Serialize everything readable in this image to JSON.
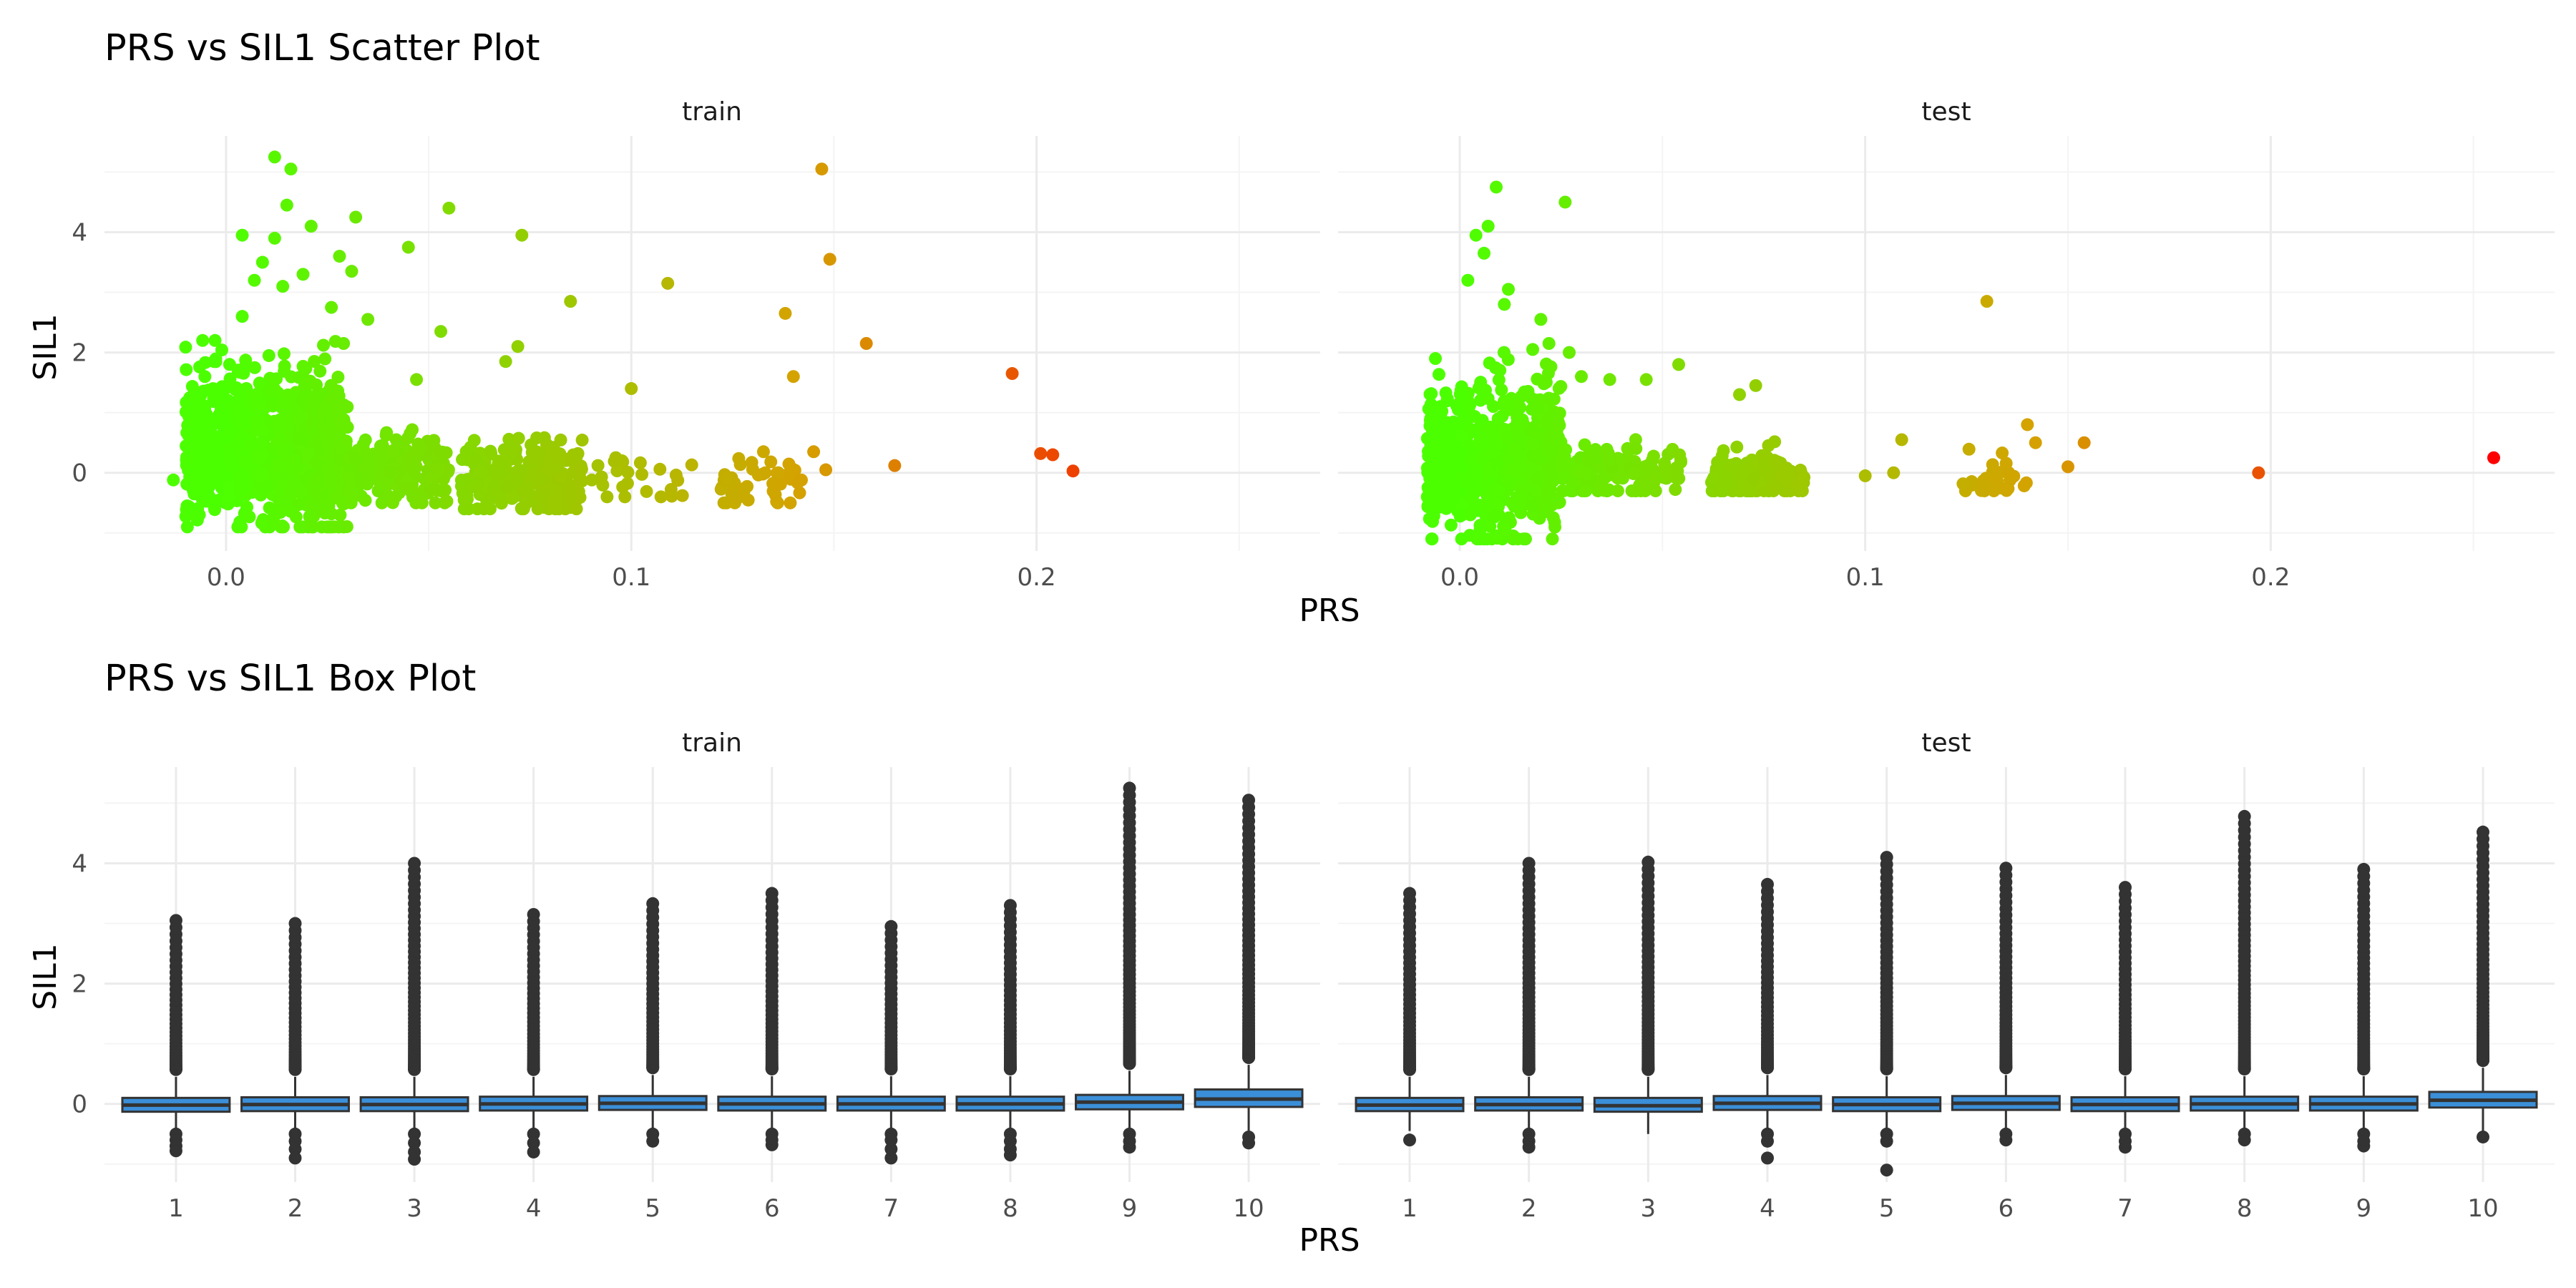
{
  "colors": {
    "background": "#ffffff",
    "grid_major": "#ebebeb",
    "grid_minor": "#f4f4f4",
    "low_prs_point": "#4cff00",
    "mid_prs_point": "#d4a300",
    "high_prs_point": "#ff0000",
    "box_fill": "#3b8fd9",
    "box_line": "#333333",
    "outlier": "#333333"
  },
  "chart_data": [
    {
      "type": "scatter",
      "title": "PRS vs SIL1 Scatter Plot",
      "xlabel": "PRS",
      "ylabel": "SIL1",
      "xlim": [
        -0.03,
        0.27
      ],
      "ylim": [
        -1.3,
        5.6
      ],
      "x_ticks": [
        0.0,
        0.1,
        0.2
      ],
      "x_tick_labels": [
        "0.0",
        "0.1",
        "0.2"
      ],
      "y_ticks": [
        0,
        2,
        4
      ],
      "y_tick_labels": [
        "0",
        "2",
        "4"
      ],
      "color_encoding": "PRS (green at 0 → orange → red at max)",
      "grid": true,
      "facets": [
        {
          "label": "train",
          "clusters": [
            {
              "x_range": [
                -0.01,
                0.03
              ],
              "y_range": [
                -0.9,
                2.2
              ],
              "n": 900
            },
            {
              "x_range": [
                0.03,
                0.055
              ],
              "y_range": [
                -0.5,
                1.0
              ],
              "n": 200
            },
            {
              "x_range": [
                0.058,
                0.088
              ],
              "y_range": [
                -0.6,
                0.9
              ],
              "n": 260
            },
            {
              "x_range": [
                0.09,
                0.115
              ],
              "y_range": [
                -0.4,
                0.6
              ],
              "n": 25
            },
            {
              "x_range": [
                0.122,
                0.142
              ],
              "y_range": [
                -0.5,
                0.7
              ],
              "n": 45
            }
          ],
          "points": [
            {
              "x": 0.012,
              "y": 5.25
            },
            {
              "x": 0.016,
              "y": 5.05
            },
            {
              "x": 0.015,
              "y": 4.45
            },
            {
              "x": 0.021,
              "y": 4.1
            },
            {
              "x": 0.032,
              "y": 4.25
            },
            {
              "x": 0.055,
              "y": 4.4
            },
            {
              "x": 0.045,
              "y": 3.75
            },
            {
              "x": 0.073,
              "y": 3.95
            },
            {
              "x": 0.004,
              "y": 3.95
            },
            {
              "x": 0.028,
              "y": 3.6
            },
            {
              "x": 0.012,
              "y": 3.9
            },
            {
              "x": 0.009,
              "y": 3.5
            },
            {
              "x": 0.019,
              "y": 3.3
            },
            {
              "x": 0.014,
              "y": 3.1
            },
            {
              "x": 0.031,
              "y": 3.35
            },
            {
              "x": 0.026,
              "y": 2.75
            },
            {
              "x": 0.035,
              "y": 2.55
            },
            {
              "x": 0.053,
              "y": 2.35
            },
            {
              "x": 0.029,
              "y": 2.15
            },
            {
              "x": 0.072,
              "y": 2.1
            },
            {
              "x": 0.069,
              "y": 1.85
            },
            {
              "x": 0.047,
              "y": 1.55
            },
            {
              "x": 0.085,
              "y": 2.85
            },
            {
              "x": 0.1,
              "y": 1.4
            },
            {
              "x": 0.109,
              "y": 3.15
            },
            {
              "x": 0.147,
              "y": 5.05
            },
            {
              "x": 0.149,
              "y": 3.55
            },
            {
              "x": 0.138,
              "y": 2.65
            },
            {
              "x": 0.158,
              "y": 2.15
            },
            {
              "x": 0.14,
              "y": 1.6
            },
            {
              "x": 0.194,
              "y": 1.65
            },
            {
              "x": 0.165,
              "y": 0.12
            },
            {
              "x": 0.201,
              "y": 0.32
            },
            {
              "x": 0.204,
              "y": 0.3
            },
            {
              "x": 0.209,
              "y": 0.03
            },
            {
              "x": -0.013,
              "y": -0.12
            },
            {
              "x": -0.007,
              "y": 0.35
            },
            {
              "x": -0.003,
              "y": 1.85
            },
            {
              "x": 0.004,
              "y": 2.6
            },
            {
              "x": 0.007,
              "y": 3.2
            },
            {
              "x": 0.148,
              "y": 0.05
            },
            {
              "x": 0.145,
              "y": 0.35
            }
          ]
        },
        {
          "label": "test",
          "clusters": [
            {
              "x_range": [
                -0.008,
                0.025
              ],
              "y_range": [
                -1.1,
                2.0
              ],
              "n": 700
            },
            {
              "x_range": [
                0.025,
                0.055
              ],
              "y_range": [
                -0.3,
                0.8
              ],
              "n": 150
            },
            {
              "x_range": [
                0.062,
                0.085
              ],
              "y_range": [
                -0.3,
                0.7
              ],
              "n": 180
            },
            {
              "x_range": [
                0.122,
                0.14
              ],
              "y_range": [
                -0.3,
                0.6
              ],
              "n": 30
            }
          ],
          "points": [
            {
              "x": 0.009,
              "y": 4.75
            },
            {
              "x": 0.026,
              "y": 4.5
            },
            {
              "x": 0.004,
              "y": 3.95
            },
            {
              "x": 0.007,
              "y": 4.1
            },
            {
              "x": 0.006,
              "y": 3.65
            },
            {
              "x": 0.002,
              "y": 3.2
            },
            {
              "x": 0.012,
              "y": 3.05
            },
            {
              "x": 0.011,
              "y": 2.8
            },
            {
              "x": 0.02,
              "y": 2.55
            },
            {
              "x": 0.022,
              "y": 2.15
            },
            {
              "x": 0.018,
              "y": 2.05
            },
            {
              "x": 0.03,
              "y": 1.6
            },
            {
              "x": 0.027,
              "y": 2.0
            },
            {
              "x": 0.037,
              "y": 1.55
            },
            {
              "x": 0.046,
              "y": 1.55
            },
            {
              "x": 0.054,
              "y": 1.8
            },
            {
              "x": 0.073,
              "y": 1.45
            },
            {
              "x": 0.069,
              "y": 1.3
            },
            {
              "x": -0.006,
              "y": 1.9
            },
            {
              "x": -0.003,
              "y": 1.2
            },
            {
              "x": 0.13,
              "y": 2.85
            },
            {
              "x": 0.154,
              "y": 0.5
            },
            {
              "x": 0.1,
              "y": -0.05
            },
            {
              "x": 0.107,
              "y": 0.0
            },
            {
              "x": 0.109,
              "y": 0.55
            },
            {
              "x": 0.142,
              "y": 0.5
            },
            {
              "x": 0.14,
              "y": 0.8
            },
            {
              "x": 0.15,
              "y": 0.1
            },
            {
              "x": 0.197,
              "y": 0.0
            },
            {
              "x": 0.255,
              "y": 0.25
            },
            {
              "x": 0.005,
              "y": -1.1
            },
            {
              "x": -0.008,
              "y": -0.4
            }
          ]
        }
      ]
    },
    {
      "type": "box",
      "title": "PRS vs SIL1 Box Plot",
      "xlabel": "PRS",
      "ylabel": "SIL1",
      "categories": [
        "1",
        "2",
        "3",
        "4",
        "5",
        "6",
        "7",
        "8",
        "9",
        "10"
      ],
      "ylim": [
        -1.3,
        5.6
      ],
      "y_ticks": [
        0,
        2,
        4
      ],
      "y_tick_labels": [
        "0",
        "2",
        "4"
      ],
      "grid": true,
      "facets": [
        {
          "label": "train",
          "boxes": [
            {
              "q1": -0.13,
              "median": -0.02,
              "q3": 0.1,
              "whisker_low": -0.45,
              "whisker_high": 0.45,
              "outlier_max": 3.05,
              "outliers_low": [
                -0.5,
                -0.6,
                -0.7,
                -0.78
              ]
            },
            {
              "q1": -0.12,
              "median": -0.01,
              "q3": 0.11,
              "whisker_low": -0.45,
              "whisker_high": 0.45,
              "outlier_max": 3.0,
              "outliers_low": [
                -0.5,
                -0.62,
                -0.75,
                -0.9
              ]
            },
            {
              "q1": -0.12,
              "median": -0.01,
              "q3": 0.11,
              "whisker_low": -0.45,
              "whisker_high": 0.45,
              "outlier_max": 4.0,
              "outliers_low": [
                -0.5,
                -0.65,
                -0.8,
                -0.92
              ]
            },
            {
              "q1": -0.11,
              "median": 0.0,
              "q3": 0.12,
              "whisker_low": -0.45,
              "whisker_high": 0.45,
              "outlier_max": 3.15,
              "outliers_low": [
                -0.5,
                -0.65,
                -0.8
              ]
            },
            {
              "q1": -0.1,
              "median": 0.01,
              "q3": 0.13,
              "whisker_low": -0.45,
              "whisker_high": 0.48,
              "outlier_max": 3.33,
              "outliers_low": [
                -0.5,
                -0.62
              ]
            },
            {
              "q1": -0.11,
              "median": 0.0,
              "q3": 0.12,
              "whisker_low": -0.45,
              "whisker_high": 0.46,
              "outlier_max": 3.5,
              "outliers_low": [
                -0.5,
                -0.6,
                -0.68
              ]
            },
            {
              "q1": -0.11,
              "median": 0.0,
              "q3": 0.12,
              "whisker_low": -0.45,
              "whisker_high": 0.46,
              "outlier_max": 2.95,
              "outliers_low": [
                -0.5,
                -0.6,
                -0.75,
                -0.9
              ]
            },
            {
              "q1": -0.11,
              "median": 0.0,
              "q3": 0.12,
              "whisker_low": -0.45,
              "whisker_high": 0.46,
              "outlier_max": 3.3,
              "outliers_low": [
                -0.5,
                -0.62,
                -0.75,
                -0.85
              ]
            },
            {
              "q1": -0.09,
              "median": 0.03,
              "q3": 0.15,
              "whisker_low": -0.45,
              "whisker_high": 0.55,
              "outlier_max": 5.25,
              "outliers_low": [
                -0.5,
                -0.62,
                -0.72
              ]
            },
            {
              "q1": -0.05,
              "median": 0.08,
              "q3": 0.24,
              "whisker_low": -0.45,
              "whisker_high": 0.65,
              "outlier_max": 5.05,
              "outliers_low": [
                -0.55,
                -0.65
              ]
            }
          ]
        },
        {
          "label": "test",
          "boxes": [
            {
              "q1": -0.12,
              "median": -0.02,
              "q3": 0.1,
              "whisker_low": -0.45,
              "whisker_high": 0.45,
              "outlier_max": 3.5,
              "outliers_low": [
                -0.6
              ]
            },
            {
              "q1": -0.11,
              "median": -0.01,
              "q3": 0.11,
              "whisker_low": -0.45,
              "whisker_high": 0.45,
              "outlier_max": 4.0,
              "outliers_low": [
                -0.5,
                -0.62,
                -0.72
              ]
            },
            {
              "q1": -0.13,
              "median": -0.03,
              "q3": 0.1,
              "whisker_low": -0.5,
              "whisker_high": 0.45,
              "outlier_max": 4.02,
              "outliers_low": []
            },
            {
              "q1": -0.1,
              "median": 0.01,
              "q3": 0.13,
              "whisker_low": -0.45,
              "whisker_high": 0.48,
              "outlier_max": 3.65,
              "outliers_low": [
                -0.5,
                -0.62,
                -0.9
              ]
            },
            {
              "q1": -0.12,
              "median": -0.01,
              "q3": 0.11,
              "whisker_low": -0.45,
              "whisker_high": 0.46,
              "outlier_max": 4.1,
              "outliers_low": [
                -0.5,
                -0.62,
                -1.1
              ]
            },
            {
              "q1": -0.1,
              "median": 0.01,
              "q3": 0.13,
              "whisker_low": -0.45,
              "whisker_high": 0.48,
              "outlier_max": 3.92,
              "outliers_low": [
                -0.5,
                -0.6
              ]
            },
            {
              "q1": -0.12,
              "median": -0.01,
              "q3": 0.11,
              "whisker_low": -0.45,
              "whisker_high": 0.46,
              "outlier_max": 3.6,
              "outliers_low": [
                -0.5,
                -0.62,
                -0.72
              ]
            },
            {
              "q1": -0.11,
              "median": 0.0,
              "q3": 0.12,
              "whisker_low": -0.45,
              "whisker_high": 0.46,
              "outlier_max": 4.78,
              "outliers_low": [
                -0.5,
                -0.6
              ]
            },
            {
              "q1": -0.11,
              "median": 0.0,
              "q3": 0.12,
              "whisker_low": -0.45,
              "whisker_high": 0.46,
              "outlier_max": 3.9,
              "outliers_low": [
                -0.5,
                -0.62,
                -0.7
              ]
            },
            {
              "q1": -0.06,
              "median": 0.06,
              "q3": 0.2,
              "whisker_low": -0.45,
              "whisker_high": 0.6,
              "outlier_max": 4.52,
              "outliers_low": [
                -0.55
              ]
            }
          ]
        }
      ]
    }
  ]
}
